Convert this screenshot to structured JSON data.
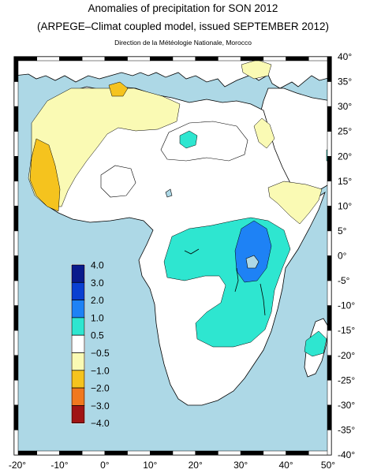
{
  "title": "Anomalies of precipitation for SON 2012",
  "subtitle": "(ARPEGE–Climat coupled model, issued SEPTEMBER 2012)",
  "credit": "Direction de la Météologie Nationale, Morocco",
  "lat_labels": [
    "40°",
    "35°",
    "30°",
    "25°",
    "20°",
    "15°",
    "10°",
    "5°",
    "0°",
    "-5°",
    "-10°",
    "-15°",
    "-20°",
    "-25°",
    "-30°",
    "-35°",
    "-40°"
  ],
  "lon_labels": [
    "-20°",
    "-10°",
    "0°",
    "10°",
    "20°",
    "30°",
    "40°",
    "50°"
  ],
  "legend": {
    "levels": [
      "4.0",
      "3.0",
      "2.0",
      "1.0",
      "0.5",
      "−0.5",
      "−1.0",
      "−2.0",
      "−3.0",
      "−4.0"
    ],
    "colors": [
      "#0a1a8c",
      "#0a3fd1",
      "#1e82f5",
      "#2ee6d0",
      "#ffffff",
      "#fafab4",
      "#f5c31e",
      "#f0781e",
      "#a01414"
    ]
  },
  "colors": {
    "ocean": "#add8e6",
    "land": "#ffffff",
    "dry_light": "#fafab4",
    "dry": "#f5c31e",
    "wet": "#2ee6d0",
    "very_wet": "#1e82f5"
  }
}
